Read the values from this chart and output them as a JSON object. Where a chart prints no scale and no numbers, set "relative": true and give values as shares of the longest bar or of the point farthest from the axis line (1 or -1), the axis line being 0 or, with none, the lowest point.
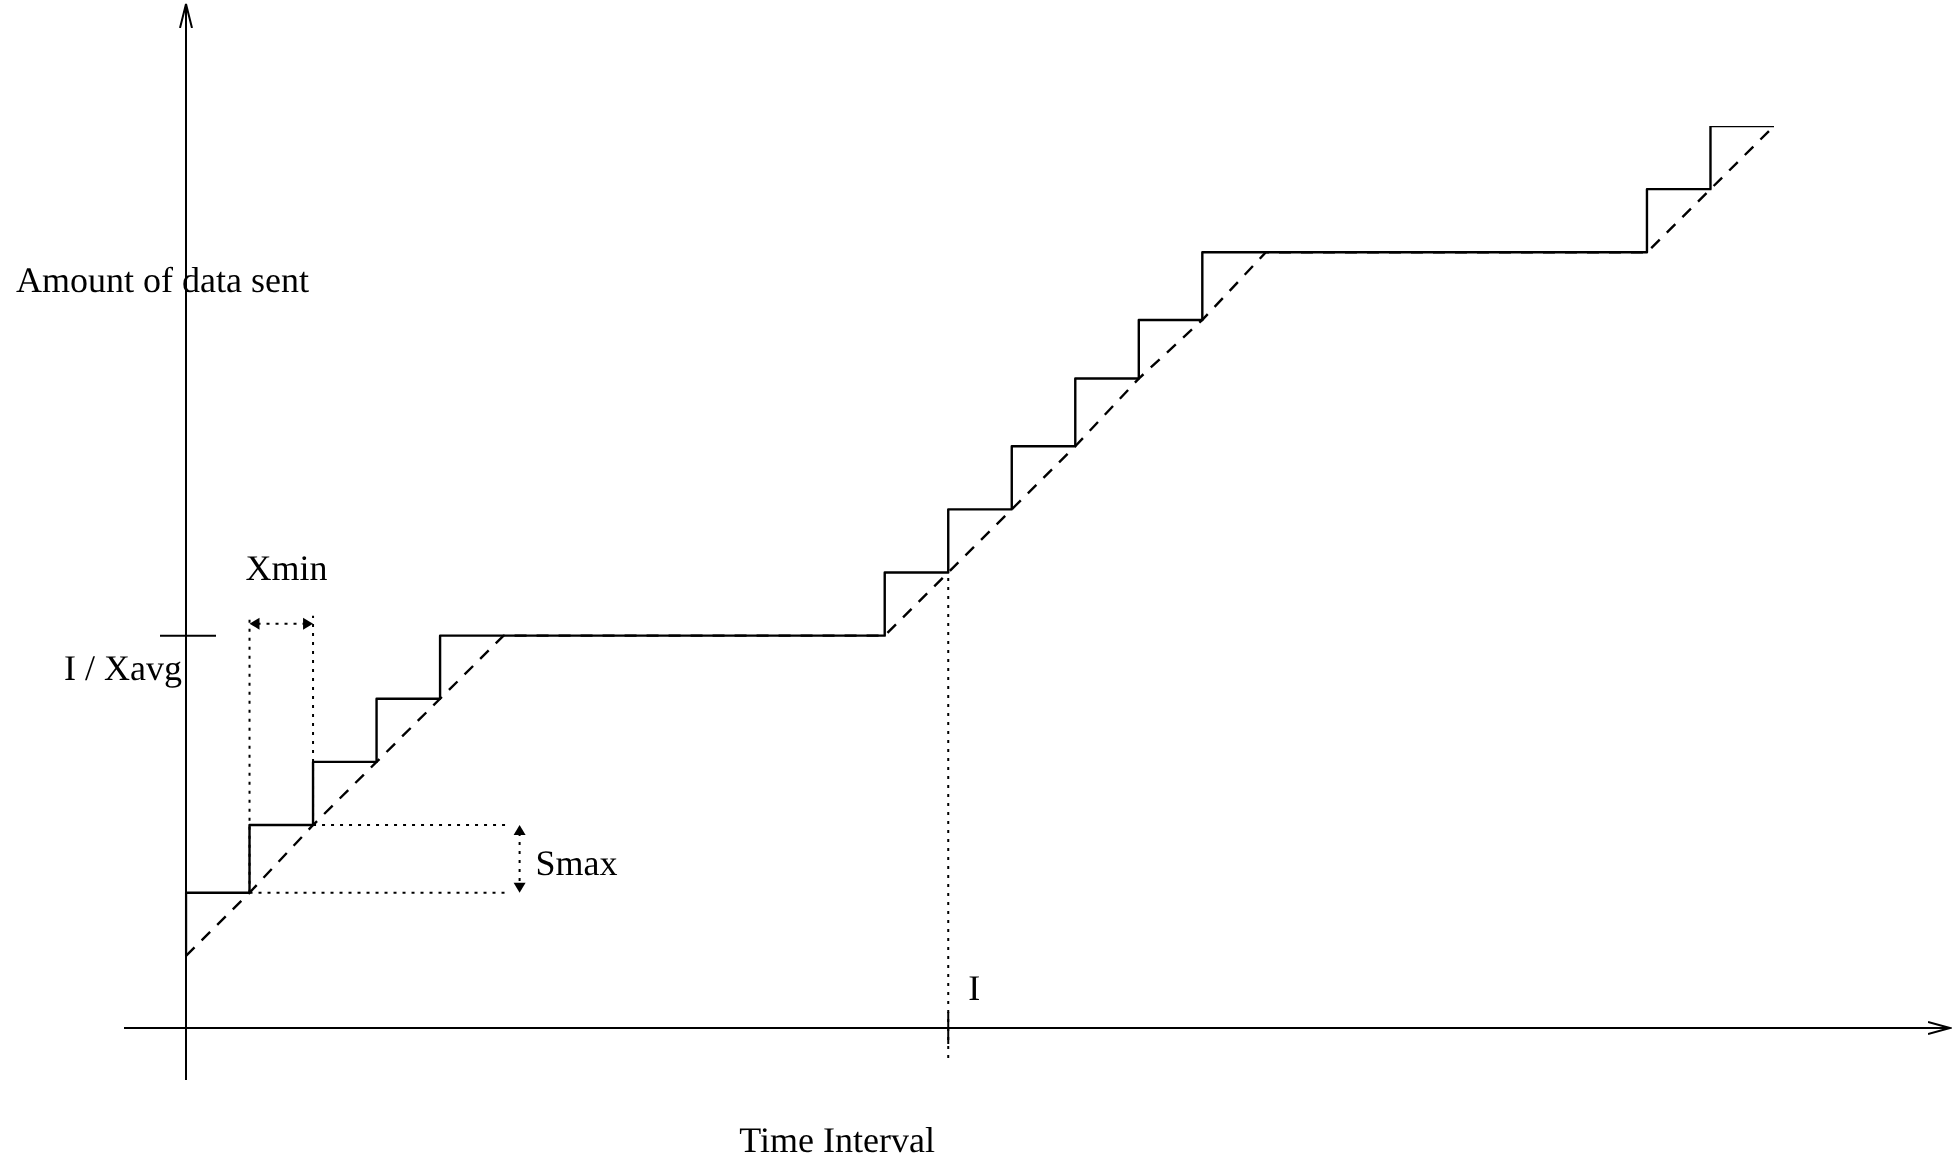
{
  "chart_data": {
    "type": "step",
    "relative": true,
    "legend": false,
    "categories": [
      null,
      null,
      null,
      null,
      null,
      null,
      null,
      null,
      null,
      null,
      null,
      null,
      null,
      null,
      null,
      null,
      null,
      null,
      null,
      null,
      null,
      null,
      null,
      null,
      null,
      null
    ],
    "xlabel": "Time Interval",
    "ylabel": "Amount of data sent",
    "series": [
      {
        "type": "line",
        "color": "#000000",
        "line_style": "dashed",
        "values": [
          0.08,
          0.15,
          0.225,
          0.295,
          0.365,
          0.435,
          0.435,
          0.435,
          0.435,
          0.435,
          0.435,
          0.435,
          0.505,
          0.575,
          0.645,
          0.72,
          0.785,
          0.86,
          0.86,
          0.86,
          0.86,
          0.86,
          0.86,
          0.86,
          0.93,
          1
        ]
      },
      {
        "type": "step",
        "color": "#000000",
        "line_style": "solid",
        "values": [
          0.08,
          0.15,
          0.225,
          0.295,
          0.365,
          0.435,
          0.435,
          0.435,
          0.435,
          0.435,
          0.435,
          0.435,
          0.505,
          0.575,
          0.645,
          0.72,
          0.785,
          0.86,
          0.86,
          0.86,
          0.86,
          0.86,
          0.86,
          0.86,
          0.93,
          1
        ]
      }
    ],
    "ref_lines": [
      {
        "axis": "y",
        "value": 0.435,
        "label": "I / Xavg"
      }
    ],
    "annotations": [
      "Xmin",
      "Smax",
      "I"
    ]
  }
}
